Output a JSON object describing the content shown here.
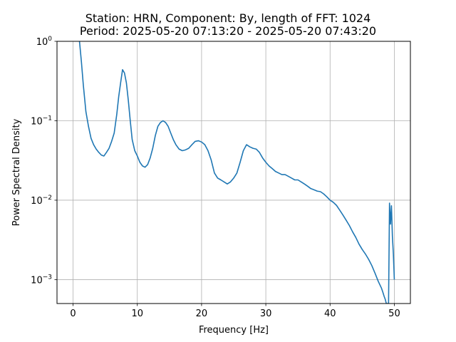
{
  "chart_data": {
    "type": "line",
    "title_line1": "Station: HRN, Component: By, length of FFT: 1024",
    "title_line2": "Period: 2025-05-20 07:13:20 - 2025-05-20 07:43:20",
    "xlabel": "Frequency [Hz]",
    "ylabel": "Power Spectral Density",
    "x_ticks": [
      0,
      10,
      20,
      30,
      40,
      50
    ],
    "y_ticks": [
      {
        "value": 0.001,
        "base": "10",
        "exp": "−3"
      },
      {
        "value": 0.01,
        "base": "10",
        "exp": "−2"
      },
      {
        "value": 0.1,
        "base": "10",
        "exp": "−1"
      },
      {
        "value": 1,
        "label": "10",
        "exp": "0"
      }
    ],
    "xlim": [
      -2.5,
      52.5
    ],
    "ylim": [
      0.0005,
      1
    ],
    "y_scale": "log",
    "grid": true,
    "line_color": "#1f77b4",
    "series": [
      {
        "x": [
          1.0,
          1.3,
          1.6,
          2.0,
          2.4,
          2.8,
          3.2,
          3.6,
          4.0,
          4.4,
          4.8,
          5.2,
          5.6,
          6.0,
          6.4,
          6.8,
          7.1,
          7.4,
          7.7,
          8.0,
          8.3,
          8.6,
          8.9,
          9.2,
          9.6,
          10.0,
          10.4,
          10.8,
          11.2,
          11.6,
          12.0,
          12.4,
          12.8,
          13.2,
          13.6,
          14.0,
          14.4,
          14.8,
          15.2,
          15.6,
          16.0,
          16.5,
          17.0,
          17.5,
          18.0,
          18.5,
          19.0,
          19.5,
          20.0,
          20.5,
          21.0,
          21.5,
          22.0,
          22.5,
          23.0,
          23.5,
          24.0,
          24.5,
          25.0,
          25.5,
          26.0,
          26.5,
          27.0,
          27.5,
          28.0,
          28.5,
          29.0,
          29.5,
          30.0,
          30.5,
          31.0,
          31.5,
          32.0,
          32.5,
          33.0,
          33.5,
          34.0,
          34.5,
          35.0,
          35.5,
          36.0,
          36.5,
          37.0,
          37.5,
          38.0,
          38.5,
          39.0,
          39.5,
          40.0,
          40.5,
          41.0,
          41.5,
          42.0,
          42.5,
          43.0,
          43.5,
          44.0,
          44.5,
          45.0,
          45.5,
          46.0,
          46.5,
          47.0,
          47.5,
          48.0,
          48.2,
          48.4,
          48.6,
          48.75,
          48.9,
          49.1,
          49.25,
          49.4,
          49.55,
          49.7,
          49.85,
          50.0
        ],
        "y": [
          1.0,
          0.55,
          0.28,
          0.13,
          0.085,
          0.06,
          0.05,
          0.044,
          0.04,
          0.037,
          0.036,
          0.04,
          0.045,
          0.055,
          0.07,
          0.12,
          0.2,
          0.3,
          0.44,
          0.4,
          0.3,
          0.18,
          0.1,
          0.058,
          0.042,
          0.036,
          0.03,
          0.027,
          0.026,
          0.028,
          0.034,
          0.045,
          0.065,
          0.085,
          0.095,
          0.1,
          0.095,
          0.085,
          0.07,
          0.058,
          0.05,
          0.044,
          0.042,
          0.043,
          0.045,
          0.05,
          0.055,
          0.056,
          0.054,
          0.05,
          0.042,
          0.032,
          0.022,
          0.019,
          0.018,
          0.017,
          0.016,
          0.017,
          0.019,
          0.022,
          0.03,
          0.042,
          0.05,
          0.047,
          0.045,
          0.044,
          0.04,
          0.034,
          0.03,
          0.027,
          0.025,
          0.023,
          0.022,
          0.021,
          0.021,
          0.02,
          0.019,
          0.018,
          0.018,
          0.017,
          0.016,
          0.015,
          0.014,
          0.0135,
          0.013,
          0.0128,
          0.012,
          0.011,
          0.01,
          0.0094,
          0.0086,
          0.0075,
          0.0065,
          0.0056,
          0.0048,
          0.004,
          0.0034,
          0.0028,
          0.0024,
          0.0021,
          0.0018,
          0.0015,
          0.0012,
          0.00095,
          0.00078,
          0.0007,
          0.00062,
          0.00056,
          0.0005,
          0.0005,
          0.0005,
          0.0092,
          0.005,
          0.0085,
          0.0035,
          0.0021,
          0.001
        ]
      }
    ]
  }
}
